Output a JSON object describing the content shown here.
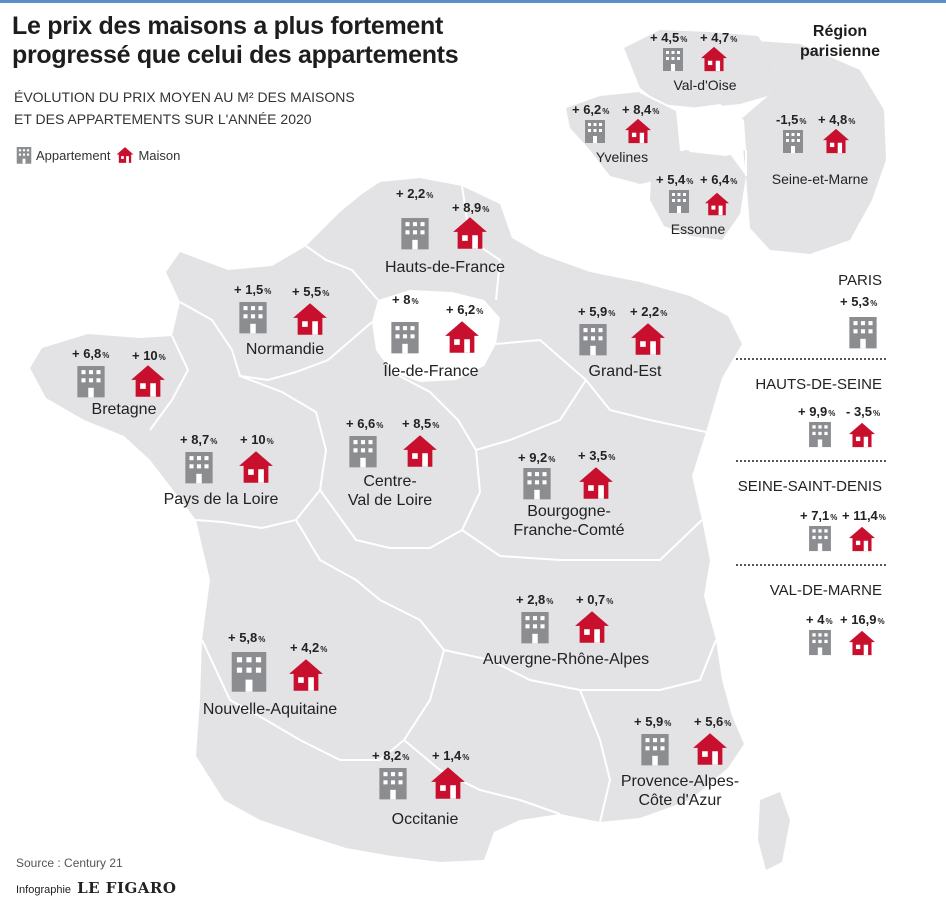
{
  "header": {
    "title": "Le prix des maisons a plus fortement progressé que celui des appartements",
    "subtitle_line1": "ÉVOLUTION DU PRIX MOYEN AU M² DES MAISONS",
    "subtitle_line2": "ET DES APPARTEMENTS SUR L'ANNÉE 2020"
  },
  "legend": {
    "apartment": "Appartement",
    "house": "Maison"
  },
  "colors": {
    "map_fill": "#e3e3e5",
    "border": "#ffffff",
    "apartment_icon": "#8c8d91",
    "house_icon": "#c8102e"
  },
  "icons": {
    "apartment": "apartment-building-icon",
    "house": "house-icon"
  },
  "regions": [
    {
      "name": "Hauts-de-France",
      "apartment": "+ 2,2",
      "house": "+ 8,9"
    },
    {
      "name": "Normandie",
      "apartment": "+ 1,5",
      "house": "+ 5,5"
    },
    {
      "name": "Île-de-France",
      "apartment": "+ 8",
      "house": "+ 6,2"
    },
    {
      "name": "Grand-Est",
      "apartment": "+ 5,9",
      "house": "+ 2,2"
    },
    {
      "name": "Bretagne",
      "apartment": "+ 6,8",
      "house": "+ 10"
    },
    {
      "name": "Pays de la Loire",
      "apartment": "+ 8,7",
      "house": "+ 10"
    },
    {
      "name_line1": "Centre-",
      "name_line2": "Val de Loire",
      "apartment": "+ 6,6",
      "house": "+ 8,5"
    },
    {
      "name_line1": "Bourgogne-",
      "name_line2": "Franche-Comté",
      "apartment": "+ 9,2",
      "house": "+ 3,5"
    },
    {
      "name": "Auvergne-Rhône-Alpes",
      "apartment": "+ 2,8",
      "house": "+ 0,7"
    },
    {
      "name": "Nouvelle-Aquitaine",
      "apartment": "+ 5,8",
      "house": "+ 4,2"
    },
    {
      "name": "Occitanie",
      "apartment": "+ 8,2",
      "house": "+ 1,4"
    },
    {
      "name_line1": "Provence-Alpes-",
      "name_line2": "Côte d'Azur",
      "apartment": "+ 5,9",
      "house": "+ 5,6"
    }
  ],
  "paris_region": {
    "title_line1": "Région",
    "title_line2": "parisienne",
    "departments": [
      {
        "name": "Val-d'Oise",
        "apartment": "+ 4,5",
        "house": "+ 4,7"
      },
      {
        "name": "Yvelines",
        "apartment": "+ 6,2",
        "house": "+ 8,4"
      },
      {
        "name": "Seine-et-Marne",
        "apartment": "-1,5",
        "house": "+ 4,8"
      },
      {
        "name": "Essonne",
        "apartment": "+ 5,4",
        "house": "+ 6,4"
      }
    ],
    "petite_couronne": [
      {
        "name": "PARIS",
        "apartment": "+ 5,3"
      },
      {
        "name": "HAUTS-DE-SEINE",
        "apartment": "+ 9,9",
        "house": "- 3,5"
      },
      {
        "name": "SEINE-SAINT-DENIS",
        "apartment": "+ 7,1",
        "house": "+ 11,4"
      },
      {
        "name": "VAL-DE-MARNE",
        "apartment": "+ 4",
        "house": "+ 16,9"
      }
    ]
  },
  "footer": {
    "source": "Source : Century 21",
    "credit_prefix": "Infographie",
    "credit_brand": "LE FIGARO"
  }
}
